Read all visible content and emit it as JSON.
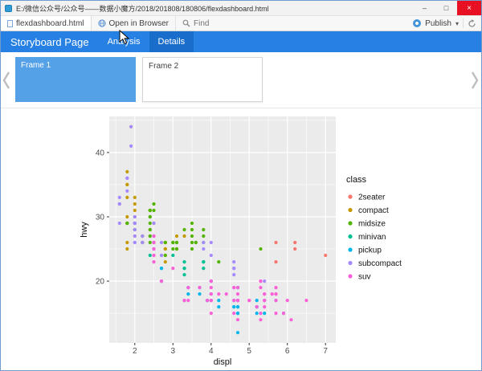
{
  "window": {
    "title": "E:/微信公众号/公众号——数据小魔方/2018/201808/180806/flexdashboard.html",
    "controls": {
      "minimize": "–",
      "maximize": "□",
      "close": "×"
    }
  },
  "toolbar": {
    "file_tab": "flexdashboard.html",
    "open_in_browser": "Open in Browser",
    "find_placeholder": "Find",
    "publish_label": "Publish",
    "caret_down": "▾"
  },
  "navbar": {
    "brand": "Storyboard Page",
    "tabs": [
      {
        "label": "Analysis"
      },
      {
        "label": "Details"
      }
    ]
  },
  "storyboard": {
    "frames": [
      {
        "label": "Frame 1",
        "active": true
      },
      {
        "label": "Frame 2",
        "active": false
      }
    ]
  },
  "chart_data": {
    "type": "scatter",
    "title": "",
    "xlabel": "displ",
    "ylabel": "hwy",
    "legend_title": "class",
    "legend_position": "right",
    "panel_bg": "#EBEBEB",
    "grid_color": "#FFFFFF",
    "xlim": [
      1.33,
      7.27
    ],
    "ylim": [
      10.4,
      45.6
    ],
    "x_ticks": [
      2,
      3,
      4,
      5,
      6,
      7
    ],
    "y_ticks": [
      20,
      30,
      40
    ],
    "x_minor": [
      1.5,
      2.5,
      3.5,
      4.5,
      5.5,
      6.5
    ],
    "y_minor": [
      15,
      25,
      35,
      45
    ],
    "series": [
      {
        "name": "2seater",
        "color": "#F8766D",
        "points": [
          [
            5.7,
            26
          ],
          [
            5.7,
            23
          ],
          [
            6.2,
            26
          ],
          [
            6.2,
            25
          ],
          [
            7,
            24
          ]
        ]
      },
      {
        "name": "compact",
        "color": "#C49A00",
        "points": [
          [
            1.8,
            29
          ],
          [
            1.8,
            29
          ],
          [
            2,
            31
          ],
          [
            2,
            30
          ],
          [
            2.8,
            26
          ],
          [
            2.8,
            26
          ],
          [
            3.1,
            27
          ],
          [
            1.8,
            26
          ],
          [
            1.8,
            25
          ],
          [
            2,
            28
          ],
          [
            2,
            27
          ],
          [
            2.8,
            25
          ],
          [
            2.8,
            25
          ],
          [
            3.1,
            25
          ],
          [
            3.1,
            25
          ],
          [
            2.2,
            26
          ],
          [
            2.2,
            27
          ],
          [
            2.4,
            28
          ],
          [
            2.4,
            31
          ],
          [
            3,
            26
          ],
          [
            3.3,
            27
          ],
          [
            1.8,
            30
          ],
          [
            1.8,
            33
          ],
          [
            1.8,
            35
          ],
          [
            1.8,
            37
          ],
          [
            1.8,
            35
          ],
          [
            2,
            29
          ],
          [
            2,
            29
          ],
          [
            2,
            28
          ],
          [
            2,
            29
          ],
          [
            2.8,
            24
          ],
          [
            1.9,
            44
          ],
          [
            2,
            29
          ],
          [
            2,
            33
          ],
          [
            2,
            32
          ],
          [
            2,
            29
          ],
          [
            2,
            29
          ],
          [
            2.5,
            29
          ],
          [
            2.5,
            29
          ],
          [
            2.8,
            23
          ]
        ]
      },
      {
        "name": "midsize",
        "color": "#53B400",
        "points": [
          [
            2.8,
            24
          ],
          [
            3.1,
            25
          ],
          [
            4.2,
            23
          ],
          [
            2.4,
            27
          ],
          [
            2.4,
            30
          ],
          [
            3.1,
            26
          ],
          [
            3.5,
            29
          ],
          [
            3.6,
            26
          ],
          [
            2.4,
            26
          ],
          [
            2.4,
            27
          ],
          [
            2.4,
            30
          ],
          [
            2.4,
            31
          ],
          [
            2.5,
            26
          ],
          [
            2.5,
            26
          ],
          [
            3.3,
            28
          ],
          [
            2.4,
            29
          ],
          [
            2.4,
            31
          ],
          [
            2.5,
            31
          ],
          [
            2.5,
            32
          ],
          [
            3.5,
            27
          ],
          [
            3.5,
            26
          ],
          [
            3,
            26
          ],
          [
            3,
            25
          ],
          [
            3.5,
            25
          ],
          [
            3.1,
            26
          ],
          [
            3.8,
            27
          ],
          [
            3.8,
            28
          ],
          [
            3.8,
            26
          ],
          [
            5.3,
            25
          ],
          [
            2.2,
            26
          ],
          [
            2.2,
            27
          ],
          [
            2.4,
            28
          ],
          [
            2.4,
            31
          ],
          [
            3,
            26
          ],
          [
            3,
            26
          ],
          [
            3.5,
            28
          ],
          [
            1.8,
            29
          ],
          [
            1.8,
            29
          ],
          [
            2,
            28
          ],
          [
            2,
            29
          ],
          [
            2.8,
            26
          ],
          [
            2.8,
            26
          ],
          [
            3.6,
            26
          ]
        ]
      },
      {
        "name": "minivan",
        "color": "#00C094",
        "points": [
          [
            2.4,
            24
          ],
          [
            3,
            24
          ],
          [
            3.3,
            22
          ],
          [
            3.3,
            22
          ],
          [
            3.3,
            17
          ],
          [
            3.3,
            21
          ],
          [
            3.3,
            23
          ],
          [
            3.8,
            23
          ],
          [
            3.8,
            23
          ],
          [
            3.8,
            22
          ],
          [
            4,
            20
          ]
        ]
      },
      {
        "name": "pickup",
        "color": "#00B6EB",
        "points": [
          [
            3.7,
            19
          ],
          [
            3.7,
            18
          ],
          [
            3.9,
            17
          ],
          [
            3.9,
            17
          ],
          [
            4.7,
            19
          ],
          [
            4.7,
            19
          ],
          [
            4.7,
            12
          ],
          [
            5.2,
            17
          ],
          [
            5.2,
            15
          ],
          [
            4.7,
            16
          ],
          [
            4.7,
            17
          ],
          [
            4.7,
            15
          ],
          [
            4.7,
            17
          ],
          [
            4.7,
            15
          ],
          [
            4.7,
            16
          ],
          [
            5.2,
            16
          ],
          [
            5.2,
            16
          ],
          [
            5.7,
            17
          ],
          [
            5.9,
            15
          ],
          [
            4.2,
            17
          ],
          [
            4.2,
            16
          ],
          [
            4.6,
            16
          ],
          [
            4.6,
            16
          ],
          [
            4.6,
            17
          ],
          [
            5.4,
            15
          ],
          [
            5.4,
            17
          ],
          [
            2.7,
            20
          ],
          [
            2.7,
            22
          ],
          [
            2.7,
            22
          ],
          [
            3.4,
            19
          ],
          [
            3.4,
            18
          ],
          [
            4,
            20
          ],
          [
            4,
            18
          ]
        ]
      },
      {
        "name": "subcompact",
        "color": "#A58AFF",
        "points": [
          [
            3.8,
            26
          ],
          [
            3.8,
            25
          ],
          [
            4,
            26
          ],
          [
            4,
            24
          ],
          [
            4.6,
            21
          ],
          [
            4.6,
            22
          ],
          [
            4.6,
            23
          ],
          [
            4.6,
            22
          ],
          [
            5.4,
            20
          ],
          [
            1.6,
            33
          ],
          [
            1.6,
            32
          ],
          [
            1.6,
            32
          ],
          [
            1.6,
            29
          ],
          [
            1.6,
            32
          ],
          [
            1.8,
            34
          ],
          [
            1.8,
            36
          ],
          [
            1.8,
            36
          ],
          [
            2,
            29
          ],
          [
            2,
            26
          ],
          [
            2,
            27
          ],
          [
            2,
            30
          ],
          [
            2,
            29
          ],
          [
            2.7,
            26
          ],
          [
            2.7,
            24
          ],
          [
            2.7,
            24
          ],
          [
            2.2,
            26
          ],
          [
            2.2,
            27
          ],
          [
            2.5,
            25
          ],
          [
            2.5,
            25
          ],
          [
            2.5,
            27
          ],
          [
            2.5,
            25
          ],
          [
            2.5,
            27
          ],
          [
            2.5,
            26
          ],
          [
            1.9,
            44
          ],
          [
            1.9,
            41
          ],
          [
            2,
            29
          ],
          [
            2,
            26
          ],
          [
            2,
            28
          ],
          [
            2.5,
            29
          ]
        ]
      },
      {
        "name": "suv",
        "color": "#FB61D7",
        "points": [
          [
            5.3,
            20
          ],
          [
            5.3,
            15
          ],
          [
            5.3,
            20
          ],
          [
            5.7,
            17
          ],
          [
            6,
            17
          ],
          [
            5.3,
            14
          ],
          [
            5.3,
            19
          ],
          [
            5.7,
            15
          ],
          [
            6.5,
            17
          ],
          [
            3.9,
            17
          ],
          [
            4.7,
            17
          ],
          [
            4.7,
            17
          ],
          [
            4.7,
            18
          ],
          [
            5.2,
            16
          ],
          [
            5.7,
            18
          ],
          [
            5.9,
            15
          ],
          [
            4.6,
            17
          ],
          [
            5.4,
            17
          ],
          [
            5.4,
            18
          ],
          [
            4,
            17
          ],
          [
            4,
            17
          ],
          [
            4,
            18
          ],
          [
            4,
            17
          ],
          [
            4.6,
            19
          ],
          [
            5,
            17
          ],
          [
            3,
            22
          ],
          [
            3.7,
            19
          ],
          [
            4,
            18
          ],
          [
            4.7,
            17
          ],
          [
            4.7,
            19
          ],
          [
            4.7,
            14
          ],
          [
            5.7,
            19
          ],
          [
            6.1,
            14
          ],
          [
            4,
            15
          ],
          [
            4.2,
            18
          ],
          [
            4.4,
            18
          ],
          [
            4.6,
            15
          ],
          [
            5.4,
            17
          ],
          [
            5.4,
            16
          ],
          [
            5.4,
            18
          ],
          [
            4,
            17
          ],
          [
            4,
            19
          ],
          [
            4.6,
            19
          ],
          [
            5,
            17
          ],
          [
            3.3,
            17
          ],
          [
            3.3,
            17
          ],
          [
            4,
            20
          ],
          [
            5.6,
            18
          ],
          [
            2.5,
            26
          ],
          [
            2.5,
            24
          ],
          [
            2.5,
            27
          ],
          [
            2.5,
            25
          ],
          [
            2.5,
            23
          ],
          [
            2.5,
            24
          ],
          [
            2.7,
            20
          ],
          [
            2.7,
            20
          ],
          [
            3.4,
            19
          ],
          [
            3.4,
            17
          ],
          [
            4,
            20
          ],
          [
            4.7,
            17
          ],
          [
            4.7,
            17
          ],
          [
            5.7,
            18
          ]
        ]
      }
    ]
  }
}
